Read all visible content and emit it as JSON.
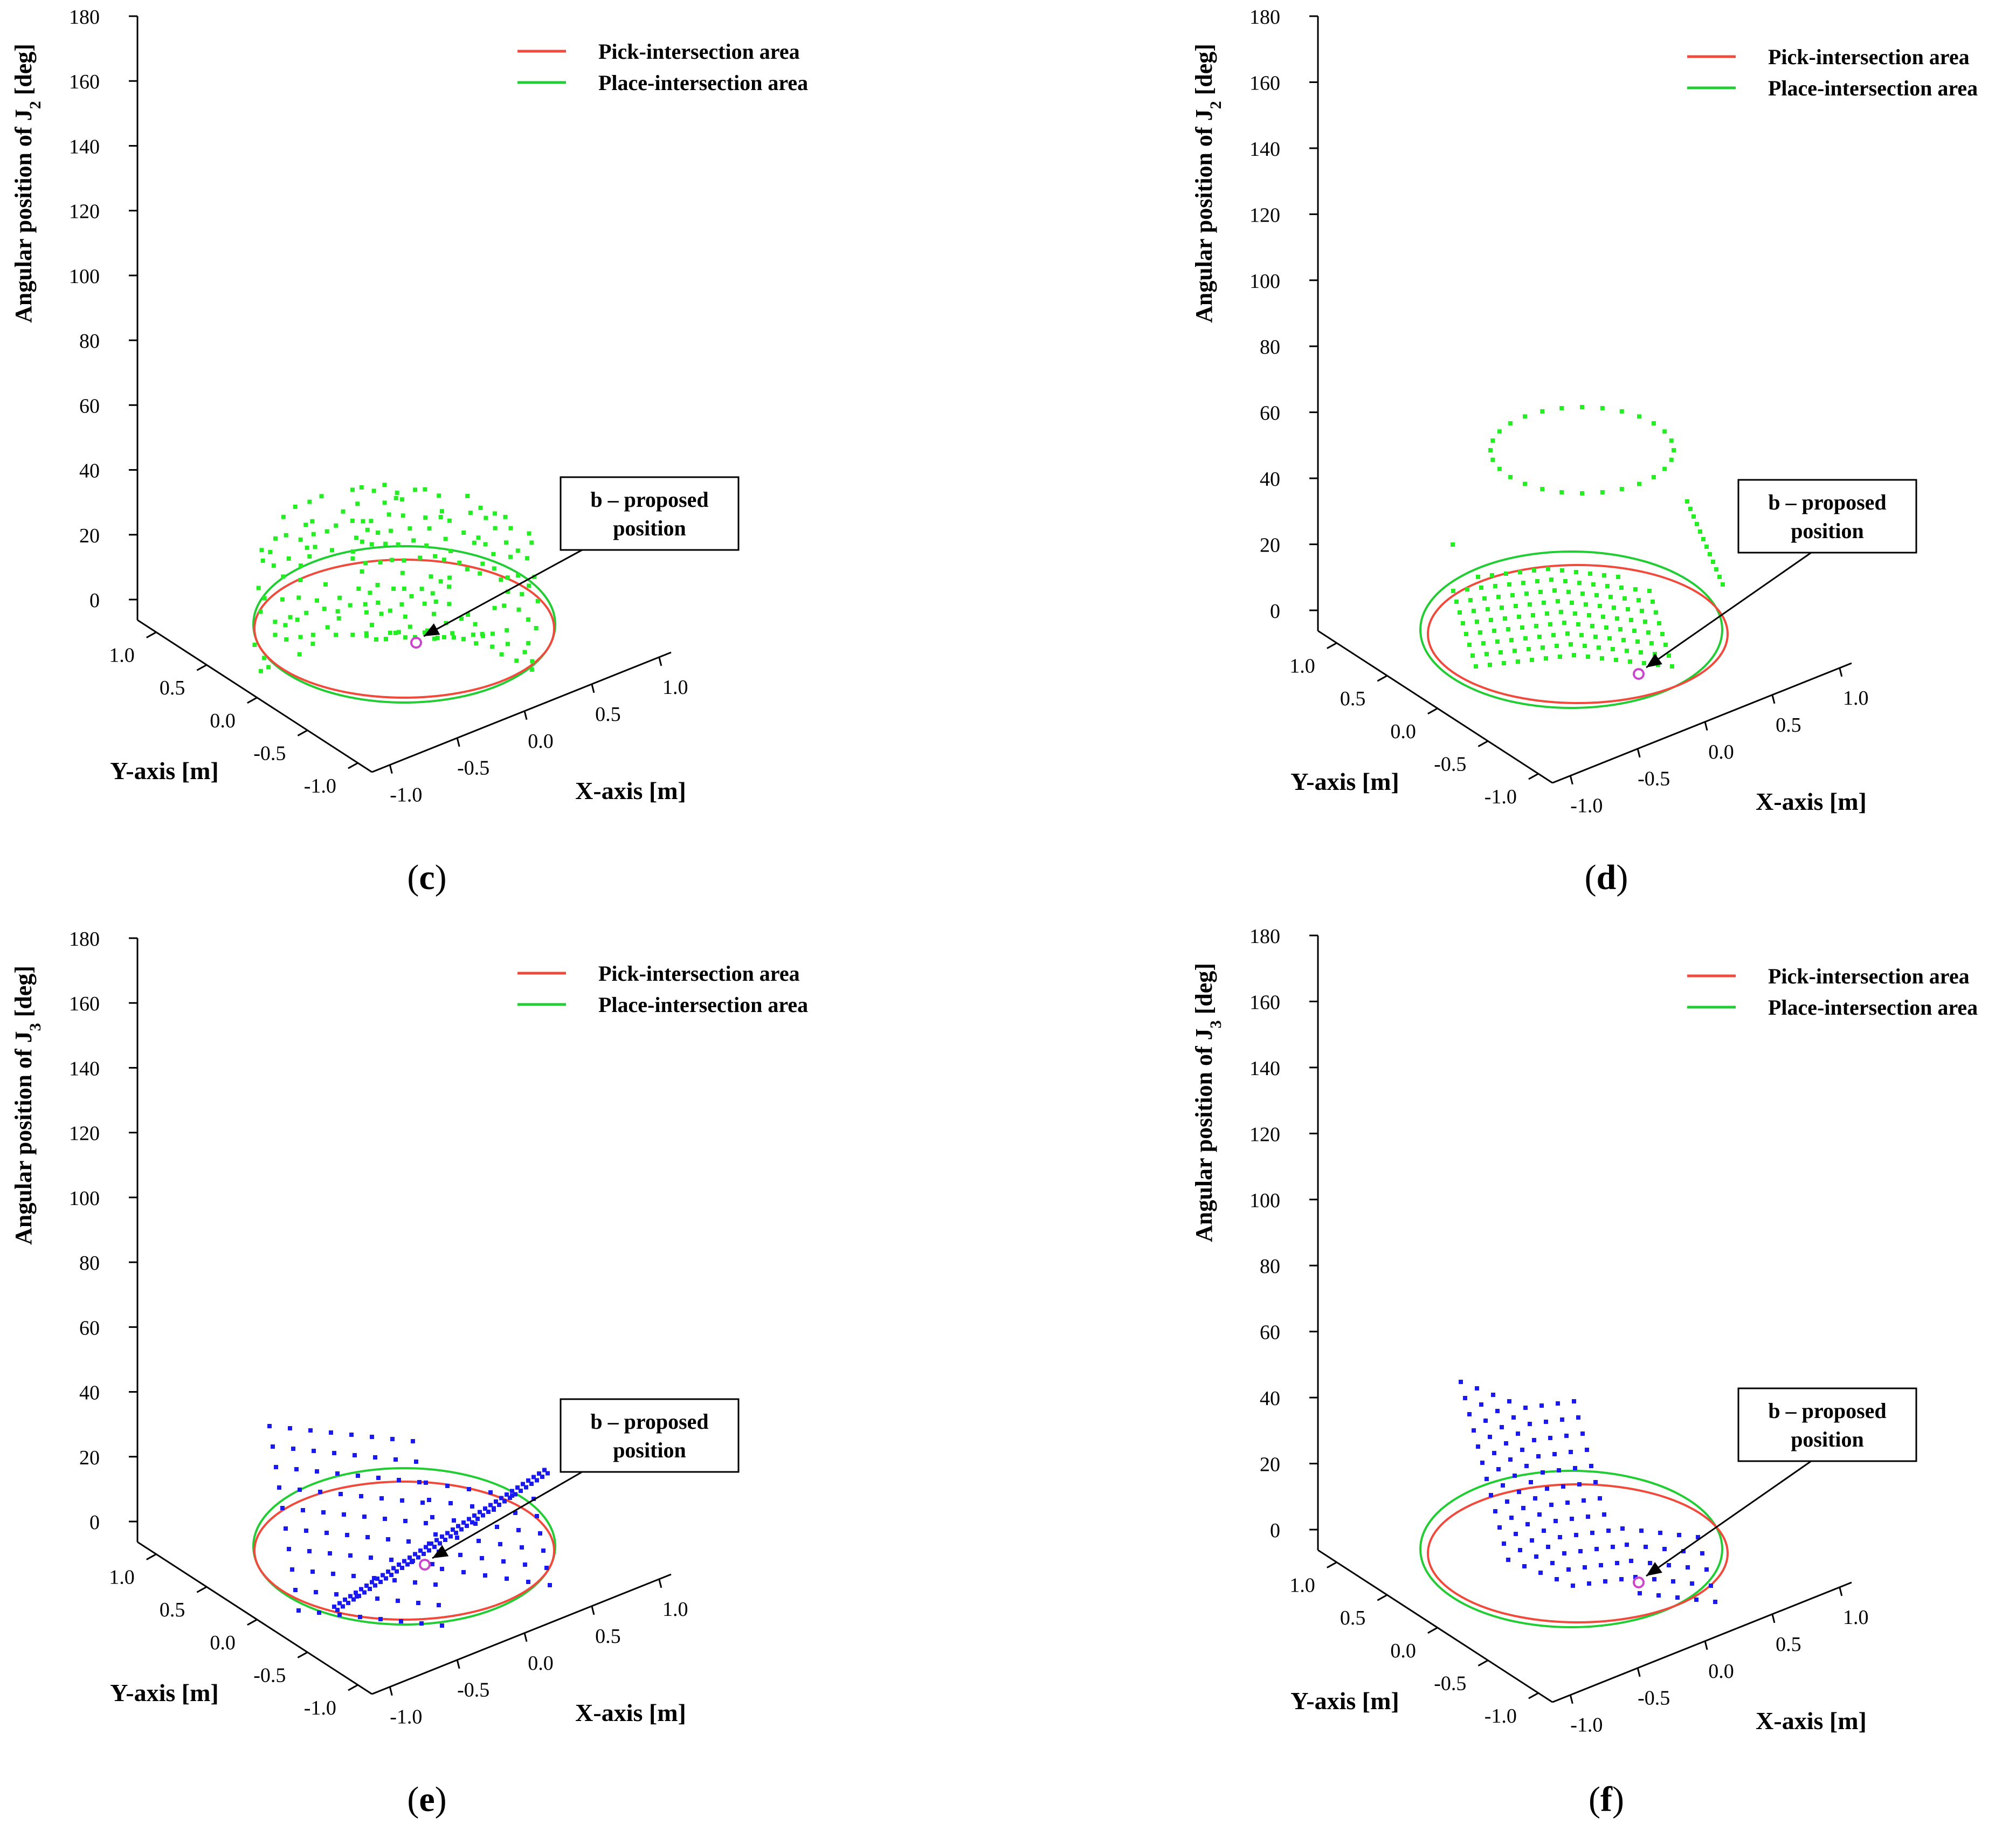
{
  "figure": {
    "colors": {
      "axis": "#000000",
      "pick": "#ef4a3c",
      "place": "#22cc33",
      "points_j2": "#22ee22",
      "points_j3": "#1a1aee",
      "marker": "#cc44cc"
    }
  },
  "chart_data": [
    {
      "id": "c",
      "caption_letter": "c",
      "type": "scatter",
      "title": "",
      "zlabel_prefix": "Angular position of J",
      "zlabel_sub": "2",
      "zlabel_suffix": " [deg]",
      "xlabel": "X-axis [m]",
      "ylabel": "Y-axis [m]",
      "ztick_labels": [
        "0",
        "20",
        "40",
        "60",
        "80",
        "100",
        "120",
        "140",
        "160",
        "180"
      ],
      "xtick_labels": [
        "-1.0",
        "-0.5",
        "0.0",
        "0.5",
        "1.0"
      ],
      "ytick_labels": [
        "-1.0",
        "-0.5",
        "0.0",
        "0.5",
        "1.0"
      ],
      "zlim": [
        0,
        180
      ],
      "xlim": [
        -1.0,
        1.0
      ],
      "ylim": [
        -1.0,
        1.0
      ],
      "legend": [
        {
          "label": "Pick-intersection area",
          "color": "#ef4a3c"
        },
        {
          "label": "Place-intersection area",
          "color": "#22cc33"
        }
      ],
      "legend_placement": "top-right",
      "annotation": {
        "line1": "b – proposed",
        "line2": "position"
      },
      "point_distribution": "dome",
      "point_color": "#22ee22",
      "proposed_position": {
        "x": 0.05,
        "y": -0.55,
        "z": 0
      }
    },
    {
      "id": "d",
      "caption_letter": "d",
      "type": "scatter",
      "title": "",
      "zlabel_prefix": "Angular position of J",
      "zlabel_sub": "2",
      "zlabel_suffix": " [deg]",
      "xlabel": "X-axis [m]",
      "ylabel": "Y-axis [m]",
      "ztick_labels": [
        "0",
        "20",
        "40",
        "60",
        "80",
        "100",
        "120",
        "140",
        "160",
        "180"
      ],
      "xtick_labels": [
        "-1.0",
        "-0.5",
        "0.0",
        "0.5",
        "1.0"
      ],
      "ytick_labels": [
        "-1.0",
        "-0.5",
        "0.0",
        "0.5",
        "1.0"
      ],
      "zlim": [
        0,
        180
      ],
      "xlim": [
        -1.0,
        1.0
      ],
      "ylim": [
        -1.0,
        1.0
      ],
      "legend": [
        {
          "label": "Pick-intersection area",
          "color": "#ef4a3c"
        },
        {
          "label": "Place-intersection area",
          "color": "#22cc33"
        }
      ],
      "legend_placement": "top-right",
      "annotation": {
        "line1": "b – proposed",
        "line2": "position"
      },
      "point_distribution": "grid_with_ring",
      "point_color": "#22ee22",
      "proposed_position": {
        "x": 0.35,
        "y": -0.75,
        "z": 0
      }
    },
    {
      "id": "e",
      "caption_letter": "e",
      "type": "scatter",
      "title": "",
      "zlabel_prefix": "Angular position of J",
      "zlabel_sub": "3",
      "zlabel_suffix": " [deg]",
      "xlabel": "X-axis [m]",
      "ylabel": "Y-axis [m]",
      "ztick_labels": [
        "0",
        "20",
        "40",
        "60",
        "80",
        "100",
        "120",
        "140",
        "160",
        "180"
      ],
      "xtick_labels": [
        "-1.0",
        "-0.5",
        "0.0",
        "0.5",
        "1.0"
      ],
      "ytick_labels": [
        "-1.0",
        "-0.5",
        "0.0",
        "0.5",
        "1.0"
      ],
      "zlim": [
        0,
        180
      ],
      "xlim": [
        -1.0,
        1.0
      ],
      "ylim": [
        -1.0,
        1.0
      ],
      "legend": [
        {
          "label": "Pick-intersection area",
          "color": "#ef4a3c"
        },
        {
          "label": "Place-intersection area",
          "color": "#22cc33"
        }
      ],
      "legend_placement": "top-right",
      "annotation": {
        "line1": "b – proposed",
        "line2": "position"
      },
      "point_distribution": "grid_with_diagonal",
      "point_color": "#1a1aee",
      "proposed_position": {
        "x": 0.1,
        "y": -0.45,
        "z": 0
      }
    },
    {
      "id": "f",
      "caption_letter": "f",
      "type": "scatter",
      "title": "",
      "zlabel_prefix": "Angular position of J",
      "zlabel_sub": "3",
      "zlabel_suffix": " [deg]",
      "xlabel": "X-axis [m]",
      "ylabel": "Y-axis [m]",
      "ztick_labels": [
        "0",
        "20",
        "40",
        "60",
        "80",
        "100",
        "120",
        "140",
        "160",
        "180"
      ],
      "xtick_labels": [
        "-1.0",
        "-0.5",
        "0.0",
        "0.5",
        "1.0"
      ],
      "ytick_labels": [
        "-1.0",
        "-0.5",
        "0.0",
        "0.5",
        "1.0"
      ],
      "zlim": [
        0,
        180
      ],
      "xlim": [
        -1.0,
        1.0
      ],
      "ylim": [
        -1.0,
        1.0
      ],
      "legend": [
        {
          "label": "Pick-intersection area",
          "color": "#ef4a3c"
        },
        {
          "label": "Place-intersection area",
          "color": "#22cc33"
        }
      ],
      "legend_placement": "top-right",
      "annotation": {
        "line1": "b – proposed",
        "line2": "position"
      },
      "point_distribution": "tilted_grid",
      "point_color": "#1a1aee",
      "proposed_position": {
        "x": 0.35,
        "y": -0.75,
        "z": 0
      }
    }
  ]
}
